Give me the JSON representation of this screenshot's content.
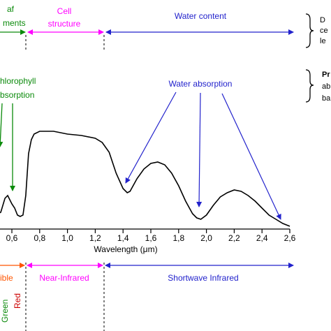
{
  "colors": {
    "green": "#0b8a0b",
    "magenta": "#ff00ff",
    "blue": "#2222cc",
    "orange": "#ff5500",
    "red": "#cc0000",
    "black": "#000000"
  },
  "top_bands": {
    "leaf": {
      "line1": "af",
      "line2": "ments"
    },
    "cell": {
      "line1": "Cell",
      "line2": "structure"
    },
    "water": {
      "label": "Water content"
    }
  },
  "right_notes": {
    "note1": {
      "line1": "D",
      "line2": "ce",
      "line3": "le"
    },
    "note2": {
      "line1": "Pr",
      "line2": "ab",
      "line3": "ba"
    }
  },
  "annotations": {
    "chlorophyll": {
      "line1": "hlorophyll",
      "line2": "bsorption"
    },
    "water_absorption": "Water absorption"
  },
  "bottom_bands": {
    "visible": "ible",
    "nir": "Near-Infrared",
    "swir": "Shortwave Infrared",
    "green": "Green",
    "red": "Red"
  },
  "chart_data": {
    "type": "line",
    "xlabel": "Wavelength (μm)",
    "ylabel": "",
    "xlim": [
      0.4,
      2.6
    ],
    "ylim": [
      0,
      1
    ],
    "x_ticks": [
      0.6,
      0.8,
      1.0,
      1.2,
      1.4,
      1.6,
      1.8,
      2.0,
      2.2,
      2.4,
      2.6
    ],
    "x_tick_labels": [
      "0,6",
      "0,8",
      "1,0",
      "1,2",
      "1,4",
      "1,6",
      "1,8",
      "2,0",
      "2,2",
      "2,4",
      "2,6"
    ],
    "series": [
      {
        "x": [
          0.4,
          0.45,
          0.5,
          0.52,
          0.55,
          0.57,
          0.6,
          0.62,
          0.64,
          0.66,
          0.68,
          0.7,
          0.72,
          0.74,
          0.76,
          0.8,
          0.9,
          1.0,
          1.1,
          1.2,
          1.25,
          1.3,
          1.35,
          1.4,
          1.43,
          1.45,
          1.5,
          1.55,
          1.6,
          1.65,
          1.7,
          1.75,
          1.8,
          1.85,
          1.9,
          1.93,
          1.96,
          2.0,
          2.05,
          2.1,
          2.15,
          2.2,
          2.25,
          2.3,
          2.35,
          2.4,
          2.45,
          2.5,
          2.55,
          2.6
        ],
        "y": [
          0.06,
          0.07,
          0.09,
          0.1,
          0.2,
          0.22,
          0.16,
          0.13,
          0.08,
          0.07,
          0.08,
          0.22,
          0.52,
          0.62,
          0.66,
          0.68,
          0.68,
          0.66,
          0.65,
          0.63,
          0.6,
          0.53,
          0.38,
          0.27,
          0.24,
          0.25,
          0.34,
          0.41,
          0.45,
          0.46,
          0.44,
          0.38,
          0.29,
          0.18,
          0.09,
          0.06,
          0.05,
          0.08,
          0.15,
          0.21,
          0.24,
          0.26,
          0.25,
          0.22,
          0.18,
          0.13,
          0.08,
          0.05,
          0.02,
          0.0
        ]
      }
    ],
    "grid": false
  }
}
